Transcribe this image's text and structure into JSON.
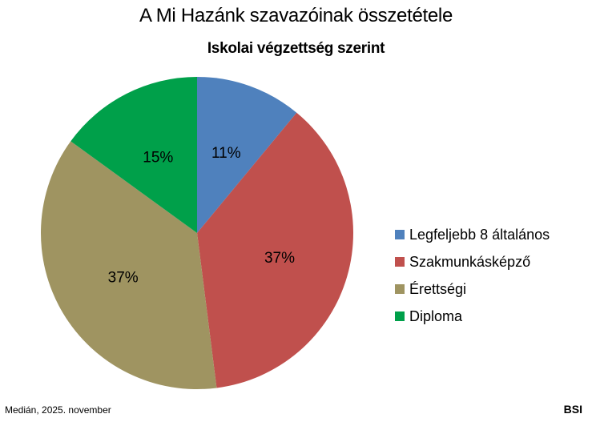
{
  "chart_data": {
    "type": "pie",
    "title": "A Mi Hazánk szavazóinak összetétele",
    "subtitle": "Iskolai végzettség szerint",
    "categories": [
      "Legfeljebb 8 általános",
      "Szakmunkásképző",
      "Érettségi",
      "Diploma"
    ],
    "values": [
      11,
      37,
      37,
      15
    ],
    "labels": [
      "11%",
      "37%",
      "37%",
      "15%"
    ],
    "colors": [
      "#4F81BD",
      "#C0504D",
      "#9F9461",
      "#00A04A"
    ],
    "legend_position": "right",
    "start_angle": "12 o'clock, clockwise"
  },
  "footer": {
    "source": "Medián, 2025. november",
    "brand": "BSI"
  }
}
